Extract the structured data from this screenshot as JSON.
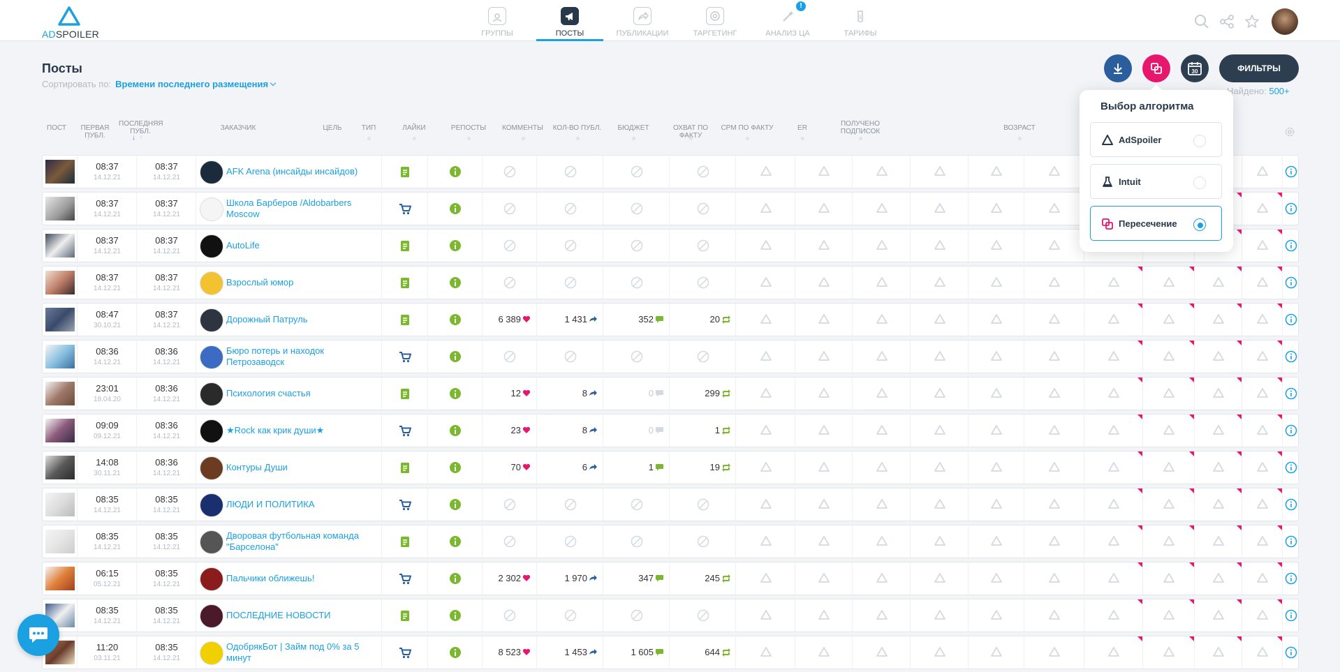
{
  "brand": {
    "logo_ad": "AD",
    "logo_rest": "SPOILER"
  },
  "nav": [
    {
      "label": "ГРУППЫ",
      "icon": "groups-icon",
      "active": false
    },
    {
      "label": "ПОСТЫ",
      "icon": "megaphone-icon",
      "active": true
    },
    {
      "label": "ПУБЛИКАЦИИ",
      "icon": "share-icon",
      "active": false
    },
    {
      "label": "ТАРГЕТИНГ",
      "icon": "target-icon",
      "active": false
    },
    {
      "label": "АНАЛИЗ ЦА",
      "icon": "magic-wand-icon",
      "active": false,
      "badge": "!"
    },
    {
      "label": "ТАРИФЫ",
      "icon": "price-tag-icon",
      "active": false
    }
  ],
  "top_right_icons": [
    "search-icon",
    "share-icon",
    "star-icon",
    "user-avatar"
  ],
  "page": {
    "title": "Посты",
    "sort_label": "Сортировать по:",
    "sort_value": "Времени последнего размещения",
    "filters_label": "ФИЛЬТРЫ",
    "found_label": "Найдено:",
    "found_count": "500+"
  },
  "actions": [
    {
      "icon": "download-icon",
      "color": "#2b5e9c"
    },
    {
      "icon": "intersection-icon",
      "color": "#e8176e"
    },
    {
      "icon": "calendar-30-icon",
      "color": "#2d3e50"
    }
  ],
  "columns": [
    "ПОСТ",
    "ПЕРВАЯ ПУБЛ.",
    "ПОСЛЕДНЯЯ ПУБЛ.",
    "ЗАКАЗЧИК",
    "ЦЕЛЬ",
    "ТИП",
    "ЛАЙКИ",
    "РЕПОСТЫ",
    "КОММЕНТЫ",
    "КОЛ-ВО ПУБЛ.",
    "БЮДЖЕТ",
    "ОХВАТ ПО ФАКТУ",
    "CPM ПО ФАКТУ",
    "ER",
    "ПОЛУЧЕНО ПОДПИСОК",
    "",
    "",
    "ВОЗРАСТ"
  ],
  "colors": {
    "accent": "#1ba1e2",
    "pink": "#e8176e",
    "green": "#7cb82f",
    "dark": "#2d3e50"
  },
  "popup": {
    "title": "Выбор алгоритма",
    "options": [
      {
        "label": "AdSpoiler",
        "icon": "adspoiler-triangle-icon",
        "selected": false
      },
      {
        "label": "Intuit",
        "icon": "flask-icon",
        "selected": false
      },
      {
        "label": "Пересечение",
        "icon": "intersection-icon",
        "selected": true
      }
    ]
  },
  "rows": [
    {
      "first_time": "08:37",
      "first_date": "14.12.21",
      "last_time": "08:37",
      "last_date": "14.12.21",
      "customer": "AFK Arena (инсайды инсайдов)",
      "goal": "post",
      "likes": null,
      "reposts": null,
      "comments": null,
      "pubs": null,
      "flag": false
    },
    {
      "first_time": "08:37",
      "first_date": "14.12.21",
      "last_time": "08:37",
      "last_date": "14.12.21",
      "customer": "Школа Барберов /Aldobarbers Moscow",
      "goal": "cart",
      "likes": null,
      "reposts": null,
      "comments": null,
      "pubs": null,
      "flag": true
    },
    {
      "first_time": "08:37",
      "first_date": "14.12.21",
      "last_time": "08:37",
      "last_date": "14.12.21",
      "customer": "AutoLife",
      "goal": "post",
      "likes": null,
      "reposts": null,
      "comments": null,
      "pubs": null,
      "flag": true
    },
    {
      "first_time": "08:37",
      "first_date": "14.12.21",
      "last_time": "08:37",
      "last_date": "14.12.21",
      "customer": "Взрослый юмор",
      "goal": "post",
      "likes": null,
      "reposts": null,
      "comments": null,
      "pubs": null,
      "flag": true
    },
    {
      "first_time": "08:47",
      "first_date": "30.10.21",
      "last_time": "08:37",
      "last_date": "14.12.21",
      "customer": "Дорожный Патруль",
      "goal": "post",
      "likes": "6 389",
      "reposts": "1 431",
      "comments": "352",
      "pubs": "20",
      "flag": true
    },
    {
      "first_time": "08:36",
      "first_date": "14.12.21",
      "last_time": "08:36",
      "last_date": "14.12.21",
      "customer": "Бюро потерь и находок Петрозаводск",
      "goal": "cart",
      "likes": null,
      "reposts": null,
      "comments": null,
      "pubs": null,
      "flag": true
    },
    {
      "first_time": "23:01",
      "first_date": "18.04.20",
      "last_time": "08:36",
      "last_date": "14.12.21",
      "customer": "Психология счастья",
      "goal": "post",
      "likes": "12",
      "reposts": "8",
      "comments": "0",
      "pubs": "299",
      "flag": true
    },
    {
      "first_time": "09:09",
      "first_date": "09.12.21",
      "last_time": "08:36",
      "last_date": "14.12.21",
      "customer": "★Rock как крик души★",
      "goal": "cart",
      "likes": "23",
      "reposts": "8",
      "comments": "0",
      "pubs": "1",
      "flag": true
    },
    {
      "first_time": "14:08",
      "first_date": "30.11.21",
      "last_time": "08:36",
      "last_date": "14.12.21",
      "customer": "Контуры Души",
      "goal": "post",
      "likes": "70",
      "reposts": "6",
      "comments": "1",
      "pubs": "19",
      "flag": true
    },
    {
      "first_time": "08:35",
      "first_date": "14.12.21",
      "last_time": "08:35",
      "last_date": "14.12.21",
      "customer": "ЛЮДИ И ПОЛИТИКА",
      "goal": "cart",
      "likes": null,
      "reposts": null,
      "comments": null,
      "pubs": null,
      "flag": true
    },
    {
      "first_time": "08:35",
      "first_date": "14.12.21",
      "last_time": "08:35",
      "last_date": "14.12.21",
      "customer": "Дворовая футбольная команда \"Барселона\"",
      "goal": "post",
      "likes": null,
      "reposts": null,
      "comments": null,
      "pubs": null,
      "flag": true
    },
    {
      "first_time": "06:15",
      "first_date": "05.12.21",
      "last_time": "08:35",
      "last_date": "14.12.21",
      "customer": "Пальчики оближешь!",
      "goal": "cart",
      "likes": "2 302",
      "reposts": "1 970",
      "comments": "347",
      "pubs": "245",
      "flag": true
    },
    {
      "first_time": "08:35",
      "first_date": "14.12.21",
      "last_time": "08:35",
      "last_date": "14.12.21",
      "customer": "ПОСЛЕДНИЕ НОВОСТИ",
      "goal": "post",
      "likes": null,
      "reposts": null,
      "comments": null,
      "pubs": null,
      "flag": true
    },
    {
      "first_time": "11:20",
      "first_date": "03.11.21",
      "last_time": "08:35",
      "last_date": "14.12.21",
      "customer": "ОдобрякБот | Займ под 0% за 5 минут",
      "goal": "cart",
      "likes": "8 523",
      "reposts": "1 453",
      "comments": "1 605",
      "pubs": "644",
      "flag": true
    }
  ]
}
